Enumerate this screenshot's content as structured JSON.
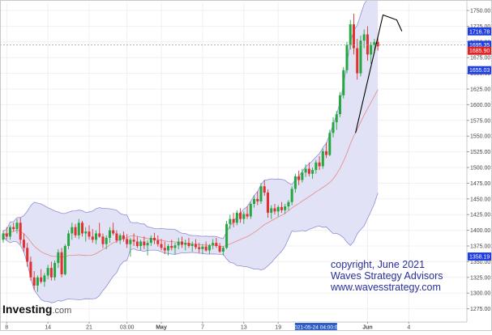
{
  "chart_data": {
    "type": "candlestick",
    "ylim": [
      1265,
      1760
    ],
    "y_ticks": [
      "1750.00",
      "1725.00",
      "1700.00",
      "1675.00",
      "1650.00",
      "1625.00",
      "1600.00",
      "1575.00",
      "1550.00",
      "1525.00",
      "1500.00",
      "1475.00",
      "1450.00",
      "1425.00",
      "1400.00",
      "1375.00",
      "1350.00",
      "1325.00",
      "1300.00",
      "1275.00"
    ],
    "x_ticks": [
      {
        "label": "8",
        "bar": 1
      },
      {
        "label": "14",
        "bar": 13
      },
      {
        "label": "21",
        "bar": 25
      },
      {
        "label": "03:00",
        "bar": 36
      },
      {
        "label": "May",
        "bar": 46
      },
      {
        "label": "7",
        "bar": 58
      },
      {
        "label": "13",
        "bar": 70
      },
      {
        "label": "19",
        "bar": 80
      },
      {
        "label": "Jun",
        "bar": 106
      },
      {
        "label": "4",
        "bar": 118
      }
    ],
    "x_highlight": {
      "label": "2021-05-24 04:00:00",
      "bar": 91
    },
    "price_labels": [
      {
        "value": 1716.78,
        "text": "1716.78",
        "color": "#1f3fe0"
      },
      {
        "value": 1695.35,
        "text": "1695.35",
        "color": "#1f3fe0"
      },
      {
        "value": 1685.9,
        "text": "1685.90",
        "color": "#e52222"
      },
      {
        "value": 1655.03,
        "text": "1655.03",
        "color": "#1f3fe0"
      },
      {
        "value": 1358.19,
        "text": "1358.19",
        "color": "#1f3fe0"
      }
    ],
    "crosshair_y": 1695.35,
    "colors": {
      "up": "#26a641",
      "down": "#e03030",
      "band_fill": "#e2e2f6",
      "band_line": "#8e8ed8",
      "middle_line": "#e58a8a",
      "trendline": "#000000"
    },
    "candles": [
      [
        1385,
        1400,
        1380,
        1395
      ],
      [
        1395,
        1405,
        1385,
        1390
      ],
      [
        1390,
        1408,
        1385,
        1405
      ],
      [
        1405,
        1412,
        1398,
        1402
      ],
      [
        1402,
        1418,
        1395,
        1412
      ],
      [
        1412,
        1420,
        1378,
        1385
      ],
      [
        1385,
        1395,
        1365,
        1372
      ],
      [
        1372,
        1380,
        1342,
        1350
      ],
      [
        1350,
        1358,
        1320,
        1325
      ],
      [
        1325,
        1335,
        1305,
        1312
      ],
      [
        1312,
        1328,
        1302,
        1325
      ],
      [
        1325,
        1338,
        1315,
        1318
      ],
      [
        1318,
        1332,
        1310,
        1328
      ],
      [
        1328,
        1345,
        1322,
        1340
      ],
      [
        1340,
        1350,
        1320,
        1325
      ],
      [
        1325,
        1352,
        1320,
        1348
      ],
      [
        1348,
        1370,
        1340,
        1365
      ],
      [
        1365,
        1372,
        1325,
        1330
      ],
      [
        1330,
        1378,
        1328,
        1375
      ],
      [
        1375,
        1400,
        1370,
        1395
      ],
      [
        1395,
        1412,
        1385,
        1405
      ],
      [
        1405,
        1410,
        1388,
        1392
      ],
      [
        1392,
        1418,
        1386,
        1412
      ],
      [
        1412,
        1415,
        1390,
        1395
      ],
      [
        1395,
        1405,
        1382,
        1398
      ],
      [
        1398,
        1408,
        1385,
        1390
      ],
      [
        1390,
        1402,
        1380,
        1385
      ],
      [
        1385,
        1400,
        1378,
        1395
      ],
      [
        1395,
        1412,
        1388,
        1390
      ],
      [
        1390,
        1395,
        1372,
        1378
      ],
      [
        1378,
        1392,
        1370,
        1388
      ],
      [
        1388,
        1405,
        1380,
        1400
      ],
      [
        1400,
        1412,
        1392,
        1395
      ],
      [
        1395,
        1400,
        1380,
        1384
      ],
      [
        1384,
        1395,
        1378,
        1392
      ],
      [
        1392,
        1398,
        1382,
        1386
      ],
      [
        1386,
        1394,
        1372,
        1378
      ],
      [
        1378,
        1388,
        1358,
        1385
      ],
      [
        1385,
        1395,
        1375,
        1382
      ],
      [
        1382,
        1390,
        1372,
        1375
      ],
      [
        1375,
        1385,
        1368,
        1382
      ],
      [
        1382,
        1390,
        1370,
        1376
      ],
      [
        1376,
        1384,
        1360,
        1380
      ],
      [
        1380,
        1392,
        1375,
        1388
      ],
      [
        1388,
        1396,
        1378,
        1384
      ],
      [
        1384,
        1392,
        1374,
        1378
      ],
      [
        1378,
        1386,
        1368,
        1372
      ],
      [
        1372,
        1382,
        1362,
        1368
      ],
      [
        1368,
        1378,
        1360,
        1375
      ],
      [
        1375,
        1385,
        1368,
        1372
      ],
      [
        1372,
        1380,
        1362,
        1376
      ],
      [
        1376,
        1388,
        1370,
        1382
      ],
      [
        1382,
        1390,
        1372,
        1377
      ],
      [
        1377,
        1385,
        1368,
        1380
      ],
      [
        1380,
        1388,
        1372,
        1375
      ],
      [
        1375,
        1382,
        1366,
        1378
      ],
      [
        1378,
        1386,
        1370,
        1373
      ],
      [
        1373,
        1380,
        1364,
        1370
      ],
      [
        1370,
        1378,
        1362,
        1374
      ],
      [
        1374,
        1382,
        1366,
        1368
      ],
      [
        1368,
        1378,
        1362,
        1376
      ],
      [
        1376,
        1386,
        1370,
        1380
      ],
      [
        1380,
        1388,
        1372,
        1375
      ],
      [
        1375,
        1380,
        1364,
        1366
      ],
      [
        1366,
        1375,
        1360,
        1372
      ],
      [
        1372,
        1415,
        1370,
        1410
      ],
      [
        1410,
        1425,
        1402,
        1418
      ],
      [
        1418,
        1428,
        1405,
        1412
      ],
      [
        1412,
        1432,
        1408,
        1428
      ],
      [
        1428,
        1435,
        1412,
        1418
      ],
      [
        1418,
        1430,
        1410,
        1426
      ],
      [
        1426,
        1438,
        1418,
        1422
      ],
      [
        1422,
        1445,
        1418,
        1442
      ],
      [
        1442,
        1456,
        1436,
        1450
      ],
      [
        1450,
        1462,
        1440,
        1446
      ],
      [
        1446,
        1475,
        1442,
        1470
      ],
      [
        1470,
        1480,
        1455,
        1460
      ],
      [
        1460,
        1465,
        1420,
        1428
      ],
      [
        1428,
        1440,
        1418,
        1435
      ],
      [
        1435,
        1442,
        1425,
        1430
      ],
      [
        1430,
        1440,
        1422,
        1437
      ],
      [
        1437,
        1445,
        1428,
        1432
      ],
      [
        1432,
        1442,
        1426,
        1438
      ],
      [
        1438,
        1448,
        1432,
        1445
      ],
      [
        1445,
        1470,
        1440,
        1466
      ],
      [
        1466,
        1490,
        1460,
        1486
      ],
      [
        1486,
        1495,
        1472,
        1480
      ],
      [
        1480,
        1498,
        1476,
        1492
      ],
      [
        1492,
        1505,
        1485,
        1498
      ],
      [
        1498,
        1508,
        1486,
        1490
      ],
      [
        1490,
        1500,
        1482,
        1496
      ],
      [
        1496,
        1512,
        1490,
        1508
      ],
      [
        1508,
        1518,
        1496,
        1502
      ],
      [
        1502,
        1530,
        1498,
        1526
      ],
      [
        1526,
        1540,
        1515,
        1520
      ],
      [
        1520,
        1560,
        1518,
        1555
      ],
      [
        1555,
        1580,
        1548,
        1572
      ],
      [
        1572,
        1590,
        1560,
        1585
      ],
      [
        1585,
        1620,
        1580,
        1615
      ],
      [
        1615,
        1660,
        1610,
        1655
      ],
      [
        1655,
        1700,
        1650,
        1695
      ],
      [
        1695,
        1735,
        1688,
        1728
      ],
      [
        1728,
        1745,
        1680,
        1690
      ],
      [
        1690,
        1705,
        1640,
        1650
      ],
      [
        1650,
        1710,
        1645,
        1702
      ],
      [
        1702,
        1720,
        1690,
        1712
      ],
      [
        1712,
        1725,
        1670,
        1680
      ],
      [
        1680,
        1700,
        1665,
        1695
      ],
      [
        1695,
        1705,
        1682,
        1700
      ],
      [
        1700,
        1708,
        1686,
        1693
      ]
    ],
    "watermark": {
      "line1": "copyright, June 2021",
      "line2": "Waves Strategy Advisors",
      "line3": "www.wavesstrategy.com"
    },
    "logo": {
      "main": "Investing",
      "suffix": ".com"
    }
  }
}
